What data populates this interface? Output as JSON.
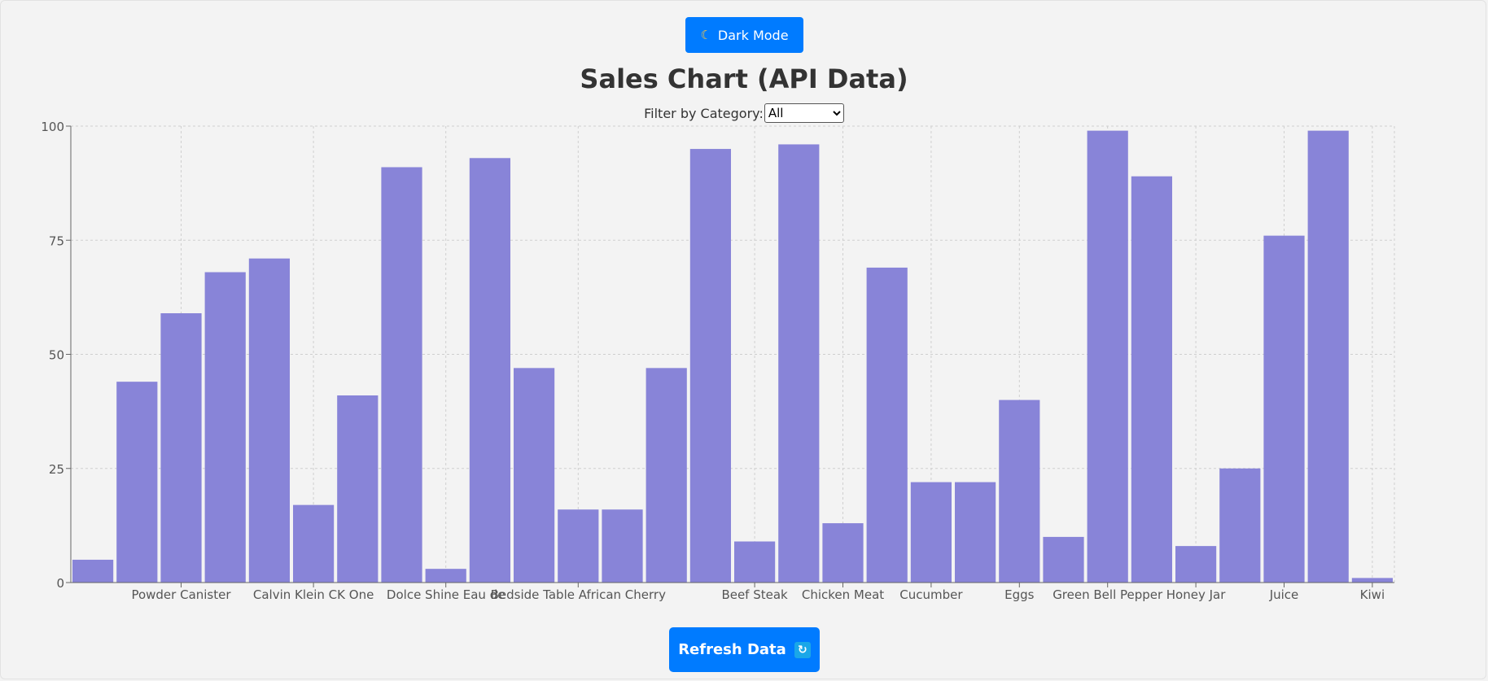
{
  "header": {
    "dark_mode_label": "Dark Mode",
    "dark_mode_icon": "moon-icon"
  },
  "title": "Sales Chart (API Data)",
  "filter": {
    "label": "Filter by Category:",
    "selected": "All"
  },
  "refresh": {
    "label": "Refresh Data",
    "icon": "refresh-icon"
  },
  "colors": {
    "bar": "#8884d8",
    "button": "#007bff"
  },
  "chart_data": {
    "type": "bar",
    "title": "",
    "xlabel": "",
    "ylabel": "",
    "ylim": [
      0,
      100
    ],
    "yticks": [
      0,
      25,
      50,
      75,
      100
    ],
    "grid": true,
    "categories": [
      "",
      "",
      "Powder Canister",
      "",
      "",
      "Calvin Klein CK One",
      "",
      "",
      "Dolce Shine Eau de",
      "",
      "",
      "Bedside Table African Cherry",
      "",
      "",
      "",
      "Beef Steak",
      "",
      "Chicken Meat",
      "",
      "Cucumber",
      "",
      "Eggs",
      "",
      "Green Bell Pepper",
      "",
      "Honey Jar",
      "",
      "Juice",
      "",
      "Kiwi"
    ],
    "values": [
      5,
      44,
      59,
      68,
      71,
      17,
      41,
      91,
      3,
      93,
      47,
      16,
      16,
      47,
      95,
      9,
      96,
      13,
      69,
      22,
      22,
      40,
      10,
      99,
      89,
      8,
      25,
      76,
      99,
      1
    ]
  }
}
